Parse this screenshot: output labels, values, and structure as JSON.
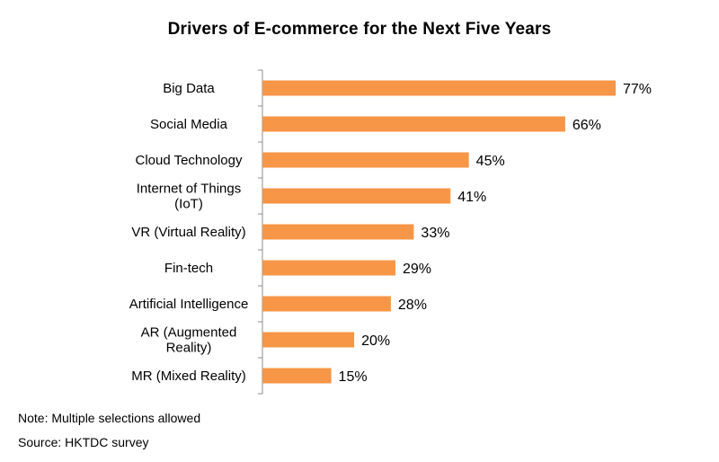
{
  "chart_data": {
    "type": "bar",
    "orientation": "horizontal",
    "title": "Drivers of E-commerce  for the Next Five Years",
    "categories": [
      [
        "Big Data"
      ],
      [
        "Social Media"
      ],
      [
        "Cloud Technology"
      ],
      [
        "Internet of Things",
        "(IoT)"
      ],
      [
        "VR (Virtual Reality)"
      ],
      [
        "Fin-tech"
      ],
      [
        "Artificial Intelligence"
      ],
      [
        "AR (Augmented",
        "Reality)"
      ],
      [
        "MR (Mixed Reality)"
      ]
    ],
    "values": [
      77,
      66,
      45,
      41,
      33,
      29,
      28,
      20,
      15
    ],
    "value_suffix": "%",
    "xlim": [
      0,
      80
    ],
    "grid": false,
    "legend": "none",
    "bar_color": "#F79646"
  },
  "footnotes": {
    "note": "Note: Multiple selections allowed",
    "source": "Source: HKTDC survey"
  }
}
